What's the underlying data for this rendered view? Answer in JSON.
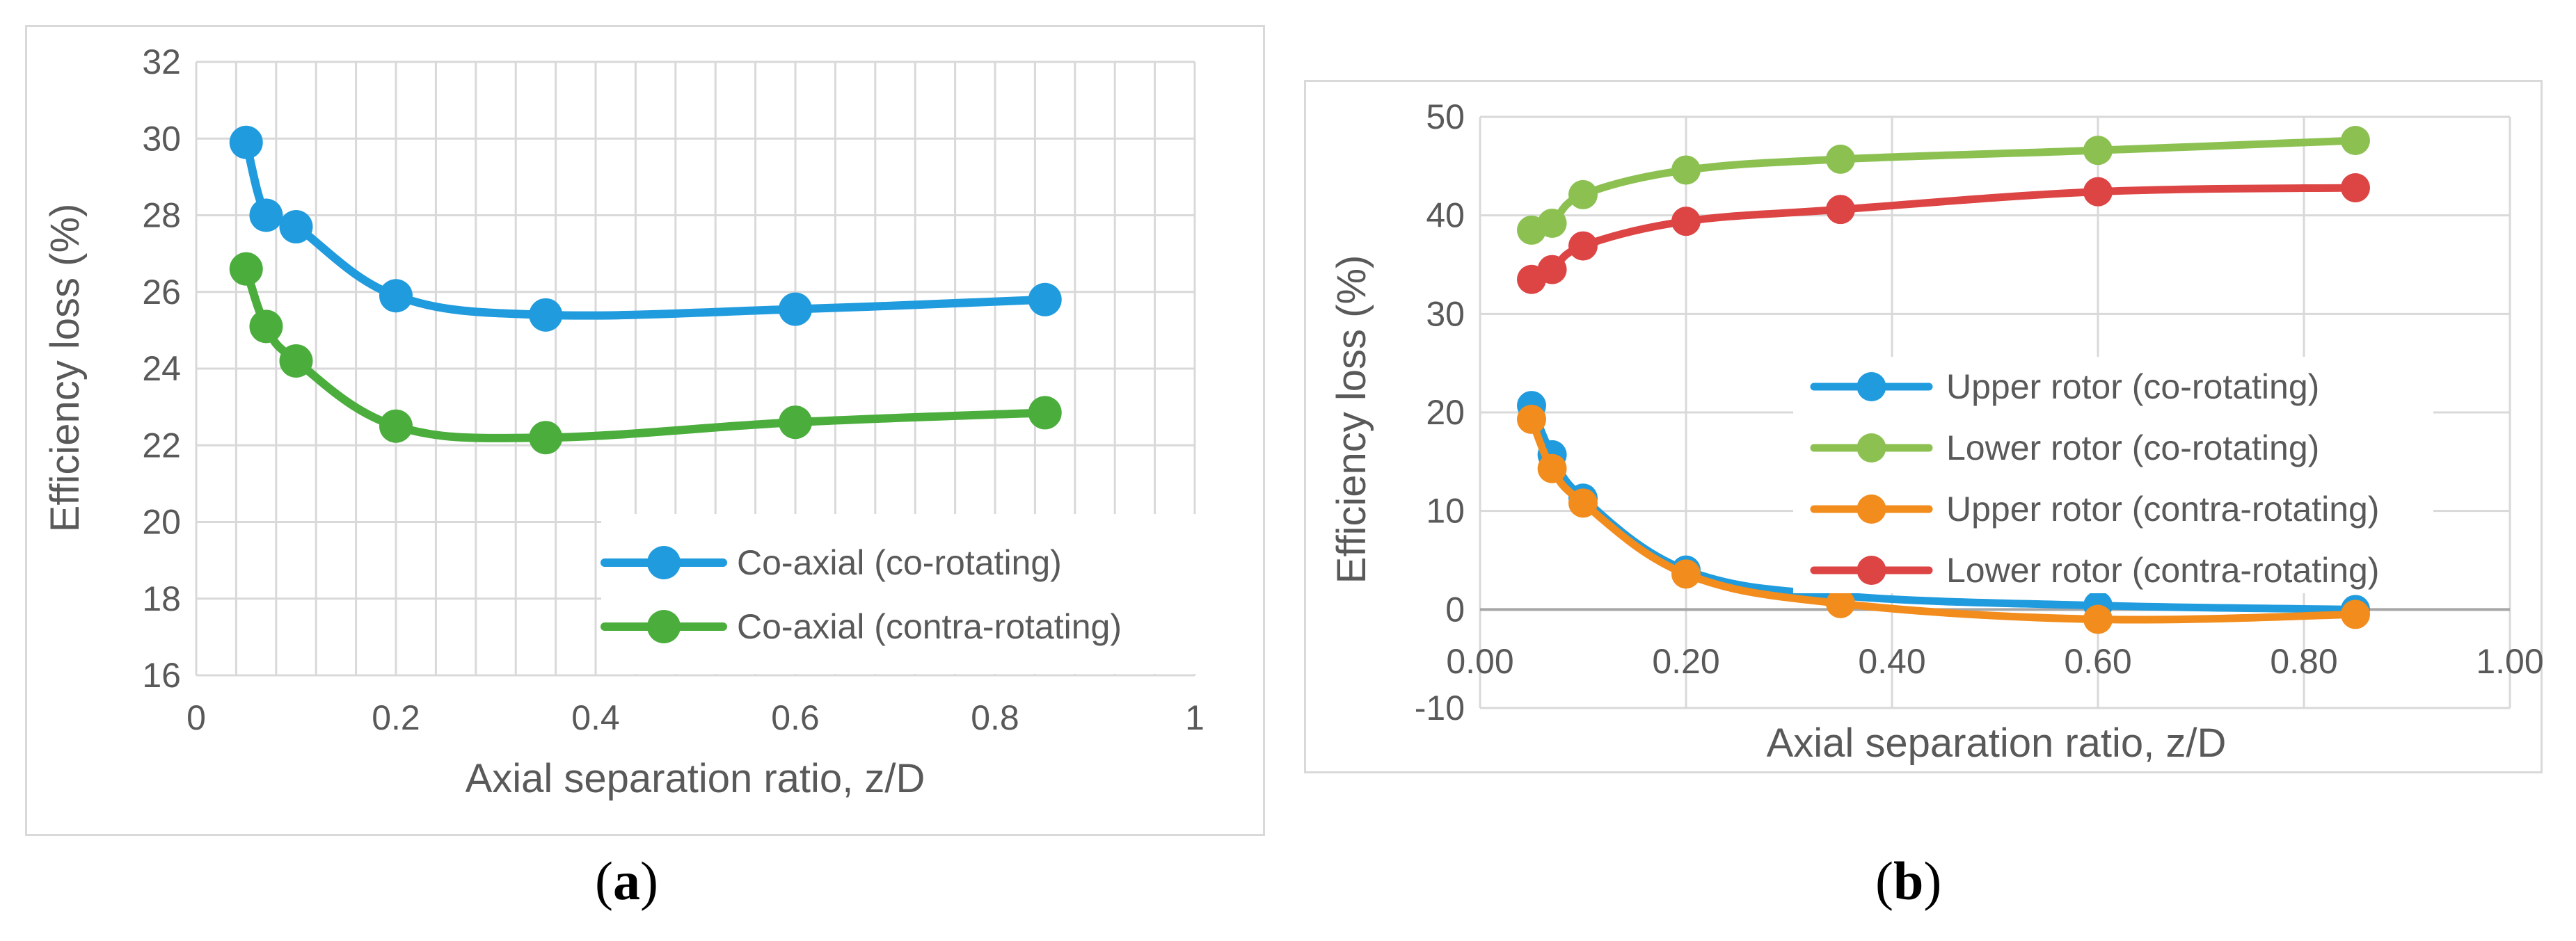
{
  "colors": {
    "blue": "#1f9bde",
    "green": "#4aad3c",
    "orange": "#f28c1c",
    "red": "#dd4444",
    "lime": "#8cc152",
    "grid": "#d9d9d9",
    "text": "#595959"
  },
  "captions": {
    "a": "a",
    "b": "b"
  },
  "chart_data": [
    {
      "id": "a",
      "type": "line",
      "title": "",
      "xlabel": "Axial separation ratio, z/D",
      "ylabel": "Efficiency loss (%)",
      "xlim": [
        0,
        1
      ],
      "ylim": [
        16,
        32
      ],
      "xticks": [
        0,
        0.2,
        0.4,
        0.6,
        0.8,
        1
      ],
      "xtick_labels": [
        "0",
        "0.2",
        "0.4",
        "0.6",
        "0.8",
        "1"
      ],
      "yticks": [
        16,
        18,
        20,
        22,
        24,
        26,
        28,
        30,
        32
      ],
      "ytick_labels": [
        "16",
        "18",
        "20",
        "22",
        "24",
        "26",
        "28",
        "30",
        "32"
      ],
      "x_minor_step": 0.04,
      "grid": true,
      "legend_position": "bottom-right",
      "series": [
        {
          "name": "Co-axial (co-rotating)",
          "color": "#1f9bde",
          "x": [
            0.05,
            0.07,
            0.1,
            0.2,
            0.35,
            0.6,
            0.85
          ],
          "y": [
            29.9,
            28.0,
            27.7,
            25.9,
            25.4,
            25.55,
            25.8
          ]
        },
        {
          "name": "Co-axial (contra-rotating)",
          "color": "#4aad3c",
          "x": [
            0.05,
            0.07,
            0.1,
            0.2,
            0.35,
            0.6,
            0.85
          ],
          "y": [
            26.6,
            25.1,
            24.2,
            22.5,
            22.2,
            22.6,
            22.85
          ]
        }
      ]
    },
    {
      "id": "b",
      "type": "line",
      "title": "",
      "xlabel": "Axial separation ratio, z/D",
      "ylabel": "Efficiency loss (%)",
      "xlim": [
        0,
        1
      ],
      "ylim": [
        -10,
        50
      ],
      "xticks": [
        0,
        0.2,
        0.4,
        0.6,
        0.8,
        1
      ],
      "xtick_labels": [
        "0.00",
        "0.20",
        "0.40",
        "0.60",
        "0.80",
        "1.00"
      ],
      "yticks": [
        -10,
        0,
        10,
        20,
        30,
        40,
        50
      ],
      "ytick_labels": [
        "-10",
        "0",
        "10",
        "20",
        "30",
        "40",
        "50"
      ],
      "grid": true,
      "legend_position": "center-right",
      "series": [
        {
          "name": "Upper rotor (co-rotating)",
          "color": "#1f9bde",
          "x": [
            0.05,
            0.07,
            0.1,
            0.2,
            0.35,
            0.6,
            0.85
          ],
          "y": [
            20.7,
            15.7,
            11.3,
            4.0,
            1.4,
            0.4,
            0.0
          ]
        },
        {
          "name": "Lower rotor (co-rotating)",
          "color": "#8cc152",
          "x": [
            0.05,
            0.07,
            0.1,
            0.2,
            0.35,
            0.6,
            0.85
          ],
          "y": [
            38.5,
            39.2,
            42.1,
            44.6,
            45.7,
            46.6,
            47.6
          ]
        },
        {
          "name": "Upper rotor (contra-rotating)",
          "color": "#f28c1c",
          "x": [
            0.05,
            0.07,
            0.1,
            0.2,
            0.35,
            0.6,
            0.85
          ],
          "y": [
            19.3,
            14.3,
            10.8,
            3.6,
            0.6,
            -1.0,
            -0.5
          ]
        },
        {
          "name": "Lower rotor (contra-rotating)",
          "color": "#dd4444",
          "x": [
            0.05,
            0.07,
            0.1,
            0.2,
            0.35,
            0.6,
            0.85
          ],
          "y": [
            33.5,
            34.5,
            36.9,
            39.4,
            40.6,
            42.4,
            42.8
          ]
        }
      ]
    }
  ]
}
